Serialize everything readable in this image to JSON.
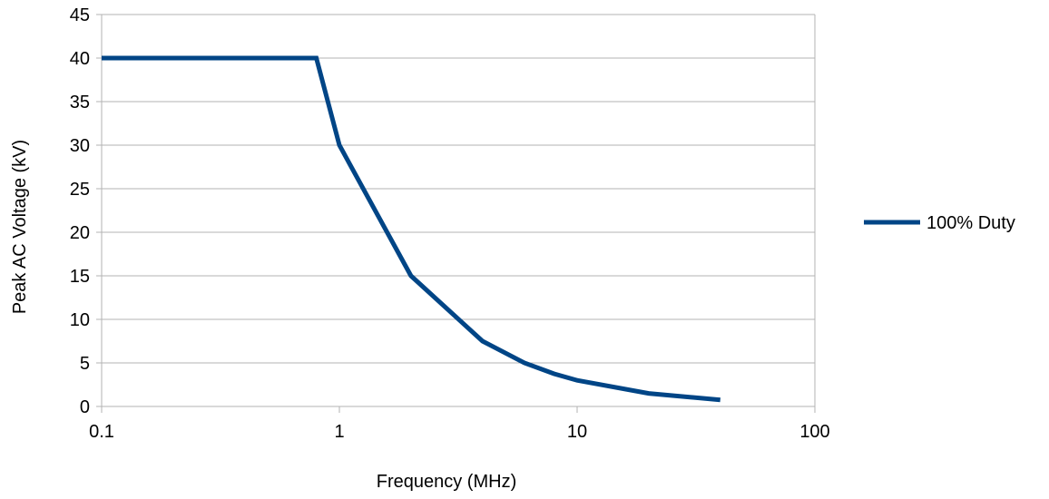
{
  "chart_data": {
    "type": "line",
    "xlabel": "Frequency (MHz)",
    "ylabel": "Peak AC Voltage (kV)",
    "x_scale": "log",
    "xlim": [
      0.1,
      100
    ],
    "ylim": [
      0,
      45
    ],
    "x_ticks": [
      0.1,
      1,
      10,
      100
    ],
    "x_tick_labels": [
      "0.1",
      "1",
      "10",
      "100"
    ],
    "y_ticks": [
      0,
      5,
      10,
      15,
      20,
      25,
      30,
      35,
      40,
      45
    ],
    "y_tick_labels": [
      "0",
      "5",
      "10",
      "15",
      "20",
      "25",
      "30",
      "35",
      "40",
      "45"
    ],
    "grid": "horizontal",
    "legend_position": "right",
    "series": [
      {
        "name": "100% Duty",
        "color": "#004586",
        "points": [
          {
            "x": 0.1,
            "y": 40
          },
          {
            "x": 0.8,
            "y": 40
          },
          {
            "x": 1,
            "y": 30
          },
          {
            "x": 2,
            "y": 15
          },
          {
            "x": 4,
            "y": 7.5
          },
          {
            "x": 6,
            "y": 5
          },
          {
            "x": 8,
            "y": 3.75
          },
          {
            "x": 10,
            "y": 3
          },
          {
            "x": 20,
            "y": 1.5
          },
          {
            "x": 40,
            "y": 0.75
          }
        ]
      }
    ]
  }
}
